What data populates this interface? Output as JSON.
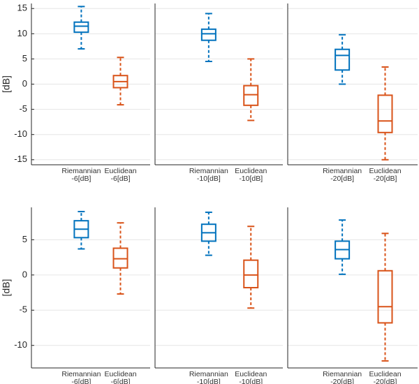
{
  "chart_data": [
    {
      "type": "box",
      "row": 0,
      "ylabel": "[dB]",
      "show_ytick_labels": true,
      "ylim": [
        -16,
        16
      ],
      "yticks": [
        -15,
        -10,
        -5,
        0,
        5,
        10,
        15
      ],
      "grid": true,
      "categories": [
        [
          "Riemannian",
          "-6[dB]"
        ],
        [
          "Euclidean",
          "-6[dB]"
        ]
      ],
      "colors": [
        "#0072bd",
        "#d95319"
      ],
      "stats": [
        {
          "min": 7,
          "q1": 10.3,
          "median": 11.5,
          "q3": 12.3,
          "max": 15.4
        },
        {
          "min": -4.1,
          "q1": -0.7,
          "median": 0.5,
          "q3": 1.7,
          "max": 5.3
        }
      ]
    },
    {
      "type": "box",
      "row": 0,
      "show_ytick_labels": false,
      "ylim": [
        -16,
        16
      ],
      "yticks": [
        -15,
        -10,
        -5,
        0,
        5,
        10,
        15
      ],
      "grid": true,
      "categories": [
        [
          "Riemannian",
          "-10[dB]"
        ],
        [
          "Euclidean",
          "-10[dB]"
        ]
      ],
      "colors": [
        "#0072bd",
        "#d95319"
      ],
      "stats": [
        {
          "min": 4.5,
          "q1": 8.7,
          "median": 10,
          "q3": 10.9,
          "max": 14
        },
        {
          "min": -7.2,
          "q1": -4.2,
          "median": -2.1,
          "q3": -0.3,
          "max": 5
        }
      ]
    },
    {
      "type": "box",
      "row": 0,
      "show_ytick_labels": false,
      "ylim": [
        -16,
        16
      ],
      "yticks": [
        -15,
        -10,
        -5,
        0,
        5,
        10,
        15
      ],
      "grid": true,
      "categories": [
        [
          "Riemannian",
          "-20[dB]"
        ],
        [
          "Euclidean",
          "-20[dB]"
        ]
      ],
      "colors": [
        "#0072bd",
        "#d95319"
      ],
      "stats": [
        {
          "min": 0,
          "q1": 2.8,
          "median": 5.7,
          "q3": 6.9,
          "max": 9.8
        },
        {
          "min": -15,
          "q1": -9.6,
          "median": -7.3,
          "q3": -2.2,
          "max": 3.4
        }
      ]
    },
    {
      "type": "box",
      "row": 1,
      "ylabel": "[dB]",
      "show_ytick_labels": true,
      "ylim": [
        -13.2,
        9.6
      ],
      "yticks": [
        -10,
        -5,
        0,
        5
      ],
      "grid": true,
      "categories": [
        [
          "Riemannian",
          "-6[dB]"
        ],
        [
          "Euclidean",
          "-6[dB]"
        ]
      ],
      "colors": [
        "#0072bd",
        "#d95319"
      ],
      "stats": [
        {
          "min": 3.7,
          "q1": 5.3,
          "median": 6.5,
          "q3": 7.7,
          "max": 9
        },
        {
          "min": -2.7,
          "q1": 1,
          "median": 2.3,
          "q3": 3.8,
          "max": 7.4
        }
      ]
    },
    {
      "type": "box",
      "row": 1,
      "show_ytick_labels": false,
      "ylim": [
        -13.2,
        9.6
      ],
      "yticks": [
        -10,
        -5,
        0,
        5
      ],
      "grid": true,
      "categories": [
        [
          "Riemannian",
          "-10[dB]"
        ],
        [
          "Euclidean",
          "-10[dB]"
        ]
      ],
      "colors": [
        "#0072bd",
        "#d95319"
      ],
      "stats": [
        {
          "min": 2.8,
          "q1": 4.8,
          "median": 6,
          "q3": 7.2,
          "max": 8.9
        },
        {
          "min": -4.7,
          "q1": -1.8,
          "median": 0,
          "q3": 2.1,
          "max": 6.9
        }
      ]
    },
    {
      "type": "box",
      "row": 1,
      "show_ytick_labels": false,
      "ylim": [
        -13.2,
        9.6
      ],
      "yticks": [
        -10,
        -5,
        0,
        5
      ],
      "grid": true,
      "categories": [
        [
          "Riemannian",
          "-20[dB]"
        ],
        [
          "Euclidean",
          "-20[dB]"
        ]
      ],
      "colors": [
        "#0072bd",
        "#d95319"
      ],
      "stats": [
        {
          "min": 0.1,
          "q1": 2.3,
          "median": 3.6,
          "q3": 4.8,
          "max": 7.8
        },
        {
          "min": -12.2,
          "q1": -6.8,
          "median": -4.5,
          "q3": 0.6,
          "max": 5.9
        }
      ]
    }
  ]
}
